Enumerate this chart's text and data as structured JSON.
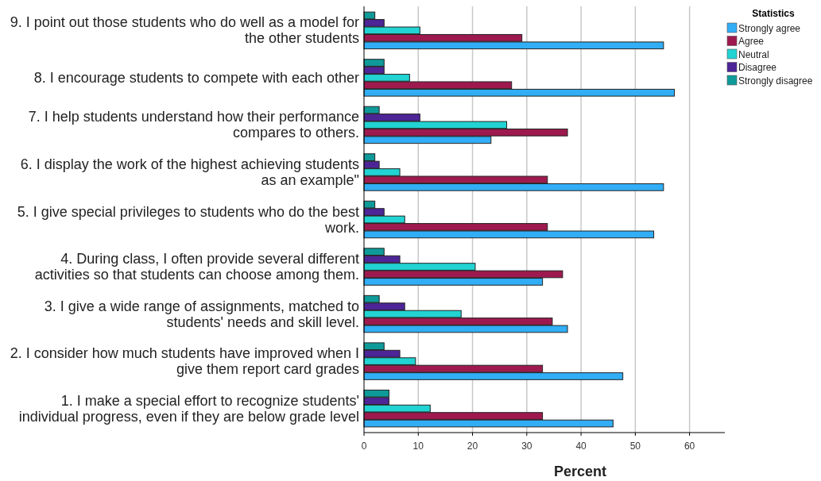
{
  "chart_data": {
    "type": "bar",
    "orientation": "horizontal",
    "xlabel": "Percent",
    "legend_title": "Statistics",
    "legend": "right",
    "grid": "x",
    "categories": [
      "9. I point out those students who do well as a model for the other students",
      "8. I encourage students to compete with each other",
      "7. I help students understand how their performance compares to others.",
      "6. I display the work of the highest achieving students as an example\"",
      "5. I give special privileges to students who do the best work.",
      "4. During class, I often provide several different activities so that students can choose among them.",
      "3. I give a wide range of assignments, matched to students' needs and skill level.",
      "2. I consider how much students have improved when I give them report card grades",
      "1. I make a special effort to recognize students' individual progress, even if they are below grade level"
    ],
    "xlim": [
      0,
      66.5
    ],
    "xticks": [
      0,
      10,
      20,
      30,
      40,
      50,
      60
    ],
    "series": [
      {
        "name": "Strongly agree",
        "color": "#31aef6",
        "values": [
          55.2,
          57.2,
          23.4,
          55.2,
          53.4,
          32.9,
          37.5,
          47.7,
          45.9
        ]
      },
      {
        "name": "Agree",
        "color": "#9e1a4e",
        "values": [
          29.1,
          27.2,
          37.5,
          33.8,
          33.8,
          36.6,
          34.7,
          32.9,
          32.9
        ]
      },
      {
        "name": "Neutral",
        "color": "#22d3d3",
        "values": [
          10.3,
          8.4,
          26.3,
          6.6,
          7.5,
          20.5,
          17.9,
          9.5,
          12.2
        ]
      },
      {
        "name": "Disagree",
        "color": "#4d2597",
        "values": [
          3.7,
          3.7,
          10.3,
          2.8,
          3.7,
          6.6,
          7.5,
          6.6,
          4.6
        ]
      },
      {
        "name": "Strongly disagree",
        "color": "#0f9a9a",
        "values": [
          2.0,
          3.7,
          2.8,
          2.0,
          2.0,
          3.7,
          2.8,
          3.7,
          4.6
        ]
      }
    ]
  }
}
